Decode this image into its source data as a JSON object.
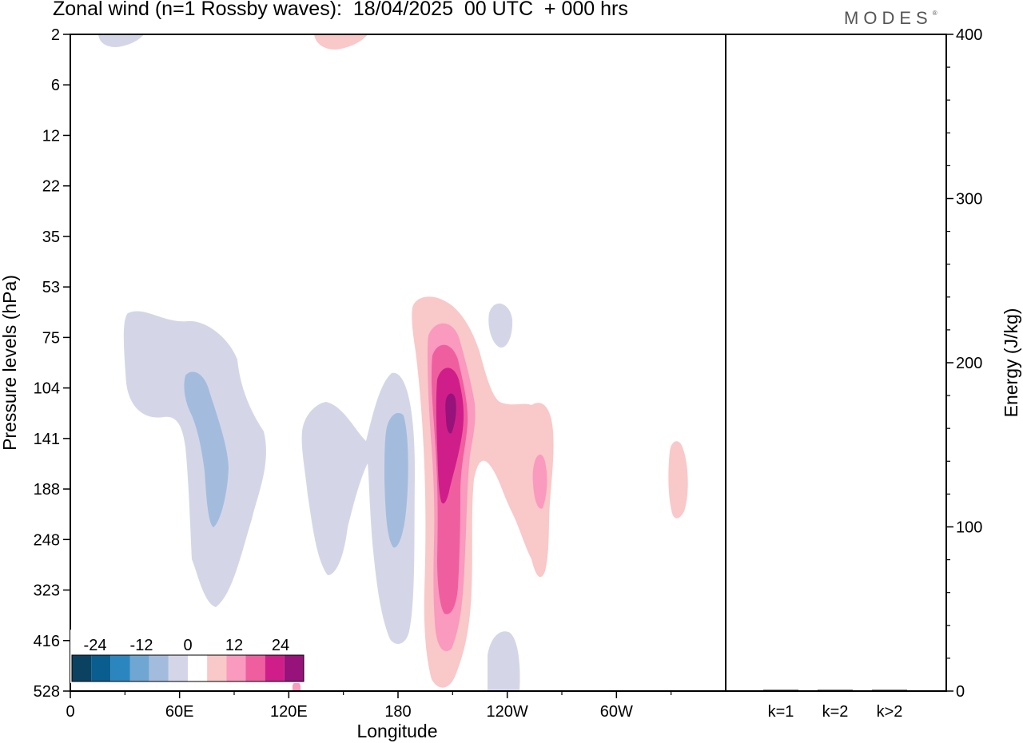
{
  "header": {
    "title": "Zonal wind (n=1 Rossby waves):  18/04/2025  00 UTC  + 000 hrs",
    "brand": "MODES",
    "brand_mark": "®"
  },
  "colors": {
    "negative": [
      "#0b4262",
      "#0a5d8f",
      "#2b86c0",
      "#6fa7d2",
      "#a3bcde",
      "#d4d6e8"
    ],
    "zero": "#ffffff",
    "positive": [
      "#f9c8c8",
      "#f99abe",
      "#ef5f9f",
      "#cf1e8a",
      "#97127b",
      "#5b0a6f"
    ]
  },
  "chart_data": [
    {
      "type": "heatmap",
      "title": "Zonal wind (n=1 Rossby waves):  18/04/2025  00 UTC  + 000 hrs",
      "xlabel": "Longitude",
      "ylabel": "Pressure levels (hPa)",
      "x_ticks": [
        "0",
        "60E",
        "120E",
        "180",
        "120W",
        "60W"
      ],
      "x_tick_values": [
        0,
        60,
        120,
        180,
        240,
        300
      ],
      "xlim": [
        0,
        360
      ],
      "y_ticks": [
        "2",
        "6",
        "12",
        "22",
        "35",
        "53",
        "75",
        "104",
        "141",
        "188",
        "248",
        "323",
        "416",
        "528"
      ],
      "colorbar": {
        "levels": [
          -30,
          -25,
          -20,
          -15,
          -10,
          -5,
          0,
          5,
          10,
          15,
          20,
          25,
          30
        ],
        "tick_labels": [
          "-24",
          "-12",
          "0",
          "12",
          "24"
        ],
        "tick_values": [
          -24,
          -12,
          0,
          12,
          24
        ]
      },
      "features": [
        {
          "sign": "negative",
          "min": -10,
          "lon_range": [
            30,
            110
          ],
          "levels_range": [
            "75",
            "323"
          ]
        },
        {
          "sign": "negative",
          "min": -10,
          "lon_range": [
            125,
            190
          ],
          "levels_range": [
            "104",
            "416"
          ]
        },
        {
          "sign": "negative",
          "min": -5,
          "lon_range": [
            227,
            240
          ],
          "levels_range": [
            "53",
            "75"
          ]
        },
        {
          "sign": "negative",
          "min": -5,
          "lon_range": [
            226,
            245
          ],
          "levels_range": [
            "416",
            "528"
          ]
        },
        {
          "sign": "negative",
          "min": -5,
          "lon_range": [
            15,
            40
          ],
          "levels_range": [
            "2",
            "2"
          ]
        },
        {
          "sign": "positive",
          "max": 25,
          "lon_range": [
            190,
            220
          ],
          "levels_range": [
            "53",
            "528"
          ]
        },
        {
          "sign": "positive",
          "max": 10,
          "lon_range": [
            220,
            265
          ],
          "levels_range": [
            "104",
            "323"
          ]
        },
        {
          "sign": "positive",
          "max": 5,
          "lon_range": [
            330,
            340
          ],
          "levels_range": [
            "141",
            "188"
          ]
        },
        {
          "sign": "positive",
          "max": 5,
          "lon_range": [
            135,
            160
          ],
          "levels_range": [
            "2",
            "2"
          ]
        }
      ]
    },
    {
      "type": "bar",
      "ylabel": "Energy (J/kg)",
      "categories": [
        "k=1",
        "k=2",
        "k>2"
      ],
      "values": [
        0.4,
        0.1,
        0.2
      ],
      "ylim": [
        0,
        400
      ],
      "y_ticks": [
        "0",
        "100",
        "200",
        "300",
        "400"
      ]
    }
  ]
}
